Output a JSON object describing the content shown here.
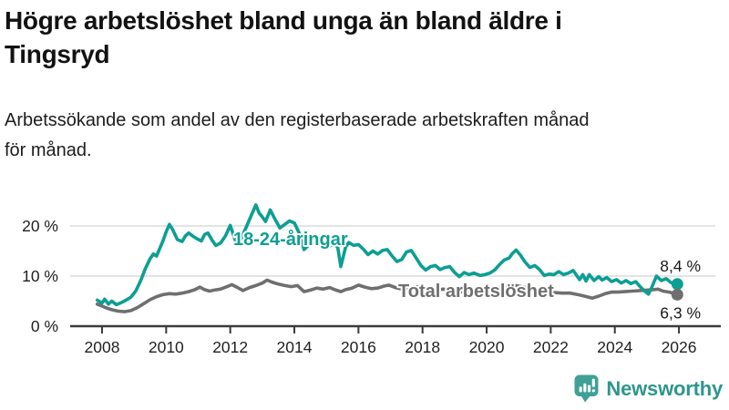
{
  "header": {
    "title_lines": [
      "Högre arbetslöshet bland unga än bland äldre i",
      "Tingsryd"
    ],
    "subtitle_lines": [
      "Arbetssökande som andel av den registerbaserade arbetskraften månad",
      "för månad."
    ]
  },
  "chart_data": {
    "type": "line",
    "title": "Högre arbetslöshet bland unga än bland äldre i Tingsryd",
    "subtitle": "Arbetssökande som andel av den registerbaserade arbetskraften månad för månad.",
    "grid": true,
    "legend_position": "inline-labels",
    "x_axis": {
      "range": [
        2007.8,
        2026.35
      ],
      "ticks": [
        2008,
        2010,
        2012,
        2014,
        2016,
        2018,
        2020,
        2022,
        2024,
        2026
      ]
    },
    "y_axis": {
      "range": [
        0,
        25
      ],
      "ticks": [
        0,
        10,
        20
      ],
      "tick_labels": [
        "0 %",
        "10 %",
        "20 %"
      ],
      "unit": "%"
    },
    "colors": {
      "youth": "#0d9e94",
      "total": "#6f6f6f",
      "grid": "#dbdbdb",
      "axis": "#3a3a3a",
      "tick_text": "#1f1f1f",
      "value_text": "#1a1a1a"
    },
    "series": [
      {
        "id": "youth",
        "name": "18-24-åringar",
        "color": "#0d9e94",
        "end_value": 8.4,
        "end_label": "8,4 %",
        "points": [
          [
            2007.85,
            5.2
          ],
          [
            2008.0,
            4.6
          ],
          [
            2008.08,
            5.4
          ],
          [
            2008.2,
            4.4
          ],
          [
            2008.3,
            5.0
          ],
          [
            2008.45,
            4.3
          ],
          [
            2008.6,
            4.7
          ],
          [
            2008.75,
            5.2
          ],
          [
            2008.9,
            5.8
          ],
          [
            2009.05,
            7.0
          ],
          [
            2009.2,
            9.0
          ],
          [
            2009.35,
            11.5
          ],
          [
            2009.5,
            13.5
          ],
          [
            2009.6,
            14.4
          ],
          [
            2009.7,
            14.0
          ],
          [
            2009.8,
            15.5
          ],
          [
            2009.9,
            17.0
          ],
          [
            2010.0,
            18.8
          ],
          [
            2010.1,
            20.3
          ],
          [
            2010.2,
            19.3
          ],
          [
            2010.35,
            17.3
          ],
          [
            2010.5,
            16.9
          ],
          [
            2010.6,
            18.0
          ],
          [
            2010.7,
            18.6
          ],
          [
            2010.85,
            17.9
          ],
          [
            2010.95,
            17.5
          ],
          [
            2011.1,
            17.0
          ],
          [
            2011.2,
            18.3
          ],
          [
            2011.3,
            18.6
          ],
          [
            2011.45,
            17.0
          ],
          [
            2011.55,
            16.1
          ],
          [
            2011.7,
            16.6
          ],
          [
            2011.85,
            18.0
          ],
          [
            2012.0,
            20.1
          ],
          [
            2012.1,
            18.2
          ],
          [
            2012.2,
            16.4
          ],
          [
            2012.35,
            17.6
          ],
          [
            2012.5,
            19.8
          ],
          [
            2012.65,
            22.0
          ],
          [
            2012.8,
            24.2
          ],
          [
            2012.9,
            22.6
          ],
          [
            2013.0,
            21.8
          ],
          [
            2013.1,
            20.9
          ],
          [
            2013.25,
            23.2
          ],
          [
            2013.4,
            21.3
          ],
          [
            2013.55,
            19.6
          ],
          [
            2013.7,
            20.3
          ],
          [
            2013.85,
            21.0
          ],
          [
            2014.0,
            20.6
          ],
          [
            2014.15,
            18.6
          ],
          [
            2014.3,
            15.3
          ],
          [
            2014.45,
            16.2
          ],
          [
            2014.6,
            17.7
          ],
          [
            2014.75,
            17.2
          ],
          [
            2014.9,
            16.2
          ],
          [
            2015.05,
            15.8
          ],
          [
            2015.2,
            16.3
          ],
          [
            2015.35,
            15.9
          ],
          [
            2015.45,
            11.9
          ],
          [
            2015.6,
            15.8
          ],
          [
            2015.7,
            16.7
          ],
          [
            2015.85,
            16.1
          ],
          [
            2016.0,
            16.3
          ],
          [
            2016.15,
            15.4
          ],
          [
            2016.3,
            14.3
          ],
          [
            2016.45,
            15.0
          ],
          [
            2016.6,
            14.4
          ],
          [
            2016.75,
            15.1
          ],
          [
            2016.9,
            15.3
          ],
          [
            2017.05,
            14.0
          ],
          [
            2017.2,
            12.9
          ],
          [
            2017.35,
            13.3
          ],
          [
            2017.5,
            14.8
          ],
          [
            2017.65,
            15.1
          ],
          [
            2017.8,
            13.6
          ],
          [
            2017.95,
            12.1
          ],
          [
            2018.1,
            11.2
          ],
          [
            2018.25,
            11.9
          ],
          [
            2018.4,
            12.1
          ],
          [
            2018.55,
            11.3
          ],
          [
            2018.7,
            11.7
          ],
          [
            2018.85,
            11.9
          ],
          [
            2019.0,
            10.7
          ],
          [
            2019.15,
            9.9
          ],
          [
            2019.3,
            10.7
          ],
          [
            2019.45,
            10.3
          ],
          [
            2019.6,
            10.6
          ],
          [
            2019.8,
            10.1
          ],
          [
            2019.95,
            10.3
          ],
          [
            2020.1,
            10.6
          ],
          [
            2020.25,
            11.2
          ],
          [
            2020.4,
            12.3
          ],
          [
            2020.55,
            13.2
          ],
          [
            2020.7,
            13.6
          ],
          [
            2020.8,
            14.5
          ],
          [
            2020.92,
            15.2
          ],
          [
            2021.05,
            14.2
          ],
          [
            2021.2,
            12.8
          ],
          [
            2021.35,
            11.7
          ],
          [
            2021.5,
            12.1
          ],
          [
            2021.65,
            11.3
          ],
          [
            2021.8,
            10.1
          ],
          [
            2021.95,
            10.4
          ],
          [
            2022.1,
            10.3
          ],
          [
            2022.25,
            10.9
          ],
          [
            2022.4,
            10.3
          ],
          [
            2022.55,
            10.6
          ],
          [
            2022.7,
            11.1
          ],
          [
            2022.8,
            10.2
          ],
          [
            2022.9,
            9.3
          ],
          [
            2023.0,
            10.3
          ],
          [
            2023.1,
            9.0
          ],
          [
            2023.2,
            10.3
          ],
          [
            2023.35,
            9.1
          ],
          [
            2023.5,
            9.9
          ],
          [
            2023.6,
            9.2
          ],
          [
            2023.75,
            9.7
          ],
          [
            2023.9,
            8.9
          ],
          [
            2024.05,
            9.3
          ],
          [
            2024.2,
            8.6
          ],
          [
            2024.35,
            9.1
          ],
          [
            2024.5,
            8.5
          ],
          [
            2024.65,
            8.9
          ],
          [
            2024.8,
            7.8
          ],
          [
            2024.95,
            6.9
          ],
          [
            2025.05,
            6.4
          ],
          [
            2025.15,
            7.7
          ],
          [
            2025.3,
            10.0
          ],
          [
            2025.45,
            9.1
          ],
          [
            2025.6,
            9.5
          ],
          [
            2025.75,
            8.7
          ],
          [
            2025.95,
            8.4
          ]
        ]
      },
      {
        "id": "total",
        "name": "Total arbetslöshet",
        "color": "#6f6f6f",
        "end_value": 6.3,
        "end_label": "6,3 %",
        "points": [
          [
            2007.85,
            4.4
          ],
          [
            2008.0,
            4.0
          ],
          [
            2008.15,
            3.6
          ],
          [
            2008.3,
            3.3
          ],
          [
            2008.5,
            3.0
          ],
          [
            2008.7,
            2.9
          ],
          [
            2008.9,
            3.1
          ],
          [
            2009.1,
            3.7
          ],
          [
            2009.3,
            4.5
          ],
          [
            2009.5,
            5.3
          ],
          [
            2009.7,
            5.9
          ],
          [
            2009.9,
            6.3
          ],
          [
            2010.1,
            6.5
          ],
          [
            2010.3,
            6.4
          ],
          [
            2010.5,
            6.6
          ],
          [
            2010.7,
            6.9
          ],
          [
            2010.9,
            7.3
          ],
          [
            2011.05,
            7.8
          ],
          [
            2011.2,
            7.3
          ],
          [
            2011.35,
            7.0
          ],
          [
            2011.5,
            7.2
          ],
          [
            2011.7,
            7.4
          ],
          [
            2011.9,
            7.9
          ],
          [
            2012.05,
            8.3
          ],
          [
            2012.2,
            7.8
          ],
          [
            2012.4,
            7.1
          ],
          [
            2012.6,
            7.7
          ],
          [
            2012.8,
            8.1
          ],
          [
            2013.0,
            8.6
          ],
          [
            2013.15,
            9.2
          ],
          [
            2013.3,
            8.8
          ],
          [
            2013.5,
            8.4
          ],
          [
            2013.7,
            8.1
          ],
          [
            2013.9,
            7.9
          ],
          [
            2014.1,
            8.1
          ],
          [
            2014.3,
            6.9
          ],
          [
            2014.5,
            7.2
          ],
          [
            2014.7,
            7.6
          ],
          [
            2014.9,
            7.4
          ],
          [
            2015.1,
            7.7
          ],
          [
            2015.3,
            7.2
          ],
          [
            2015.45,
            6.9
          ],
          [
            2015.6,
            7.3
          ],
          [
            2015.8,
            7.6
          ],
          [
            2016.0,
            8.2
          ],
          [
            2016.2,
            7.8
          ],
          [
            2016.4,
            7.5
          ],
          [
            2016.6,
            7.6
          ],
          [
            2016.8,
            8.0
          ],
          [
            2016.95,
            8.2
          ],
          [
            2017.15,
            7.7
          ],
          [
            2017.35,
            7.4
          ],
          [
            2017.55,
            7.5
          ],
          [
            2017.75,
            7.8
          ],
          [
            2017.95,
            7.9
          ],
          [
            2018.15,
            7.5
          ],
          [
            2018.4,
            7.2
          ],
          [
            2018.65,
            7.4
          ],
          [
            2018.9,
            7.1
          ],
          [
            2019.15,
            6.8
          ],
          [
            2019.4,
            6.9
          ],
          [
            2019.65,
            7.0
          ],
          [
            2019.9,
            7.2
          ],
          [
            2020.15,
            7.4
          ],
          [
            2020.4,
            7.7
          ],
          [
            2020.65,
            8.0
          ],
          [
            2020.9,
            8.1
          ],
          [
            2021.1,
            7.9
          ],
          [
            2021.35,
            7.5
          ],
          [
            2021.6,
            7.2
          ],
          [
            2021.85,
            6.9
          ],
          [
            2022.1,
            6.7
          ],
          [
            2022.35,
            6.6
          ],
          [
            2022.6,
            6.6
          ],
          [
            2022.85,
            6.3
          ],
          [
            2023.05,
            6.0
          ],
          [
            2023.3,
            5.6
          ],
          [
            2023.5,
            6.0
          ],
          [
            2023.7,
            6.5
          ],
          [
            2023.9,
            6.8
          ],
          [
            2024.1,
            6.8
          ],
          [
            2024.3,
            6.9
          ],
          [
            2024.55,
            7.0
          ],
          [
            2024.8,
            7.1
          ],
          [
            2025.0,
            7.2
          ],
          [
            2025.2,
            7.3
          ],
          [
            2025.35,
            7.4
          ],
          [
            2025.5,
            7.0
          ],
          [
            2025.7,
            6.8
          ],
          [
            2025.95,
            6.3
          ]
        ]
      }
    ]
  },
  "logo": {
    "name": "Newsworthy",
    "text_color": "#2d968c",
    "icon_color": "#3fa096",
    "icon": "speech-bubble-bar-chart-exclamation"
  }
}
